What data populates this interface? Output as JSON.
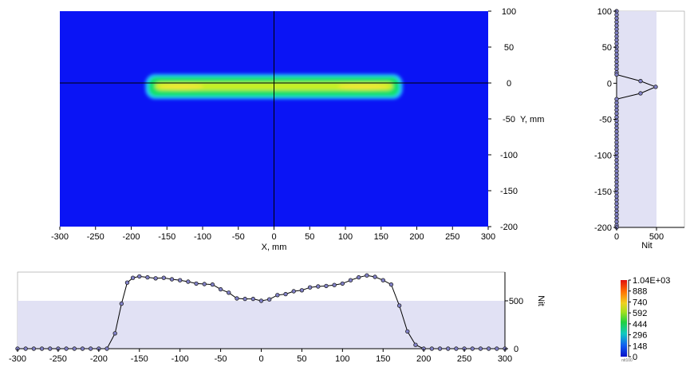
{
  "colors": {
    "field_blue": "#0a14f5",
    "band_outer": "#26c8ff",
    "band_mid": "#18e06a",
    "band_core": "#c8f024",
    "band_hot": "#f0e830",
    "profile_fill": "#e1e1f4",
    "marker_fill": "#8282c8",
    "line": "#000000"
  },
  "chart_data": [
    {
      "id": "heatmap",
      "type": "heatmap",
      "xlabel": "X, mm",
      "ylabel": "Y, mm",
      "xlim": [
        -300,
        300
      ],
      "ylim": [
        -200,
        100
      ],
      "xticks": [
        -300,
        -250,
        -200,
        -150,
        -100,
        -50,
        0,
        50,
        100,
        150,
        200,
        250,
        300
      ],
      "yticks": [
        100,
        50,
        0,
        -50,
        -100,
        -150,
        -200
      ],
      "bright_band": {
        "x": [
          -180,
          180
        ],
        "y": [
          -20,
          10
        ]
      }
    },
    {
      "id": "vertical-profile",
      "type": "line",
      "xlabel": "Nit",
      "xlim": [
        0,
        850
      ],
      "ylim": [
        -200,
        100
      ],
      "xticks": [
        0,
        500
      ],
      "yticks": [
        100,
        50,
        0,
        -50,
        -100,
        -150,
        -200
      ],
      "shaded_max": 500,
      "points": [
        [
          0,
          100
        ],
        [
          0,
          95
        ],
        [
          0,
          90
        ],
        [
          0,
          85
        ],
        [
          0,
          80
        ],
        [
          0,
          75
        ],
        [
          0,
          70
        ],
        [
          0,
          65
        ],
        [
          0,
          60
        ],
        [
          0,
          55
        ],
        [
          0,
          50
        ],
        [
          0,
          45
        ],
        [
          0,
          40
        ],
        [
          0,
          35
        ],
        [
          0,
          30
        ],
        [
          0,
          25
        ],
        [
          0,
          20
        ],
        [
          0,
          15
        ],
        [
          0,
          12
        ],
        [
          300,
          3
        ],
        [
          490,
          -5
        ],
        [
          300,
          -14
        ],
        [
          0,
          -22
        ],
        [
          0,
          -27
        ],
        [
          0,
          -32
        ],
        [
          0,
          -37
        ],
        [
          0,
          -42
        ],
        [
          0,
          -47
        ],
        [
          0,
          -52
        ],
        [
          0,
          -57
        ],
        [
          0,
          -62
        ],
        [
          0,
          -67
        ],
        [
          0,
          -72
        ],
        [
          0,
          -77
        ],
        [
          0,
          -82
        ],
        [
          0,
          -87
        ],
        [
          0,
          -92
        ],
        [
          0,
          -97
        ],
        [
          0,
          -102
        ],
        [
          0,
          -107
        ],
        [
          0,
          -112
        ],
        [
          0,
          -117
        ],
        [
          0,
          -122
        ],
        [
          0,
          -127
        ],
        [
          0,
          -132
        ],
        [
          0,
          -137
        ],
        [
          0,
          -142
        ],
        [
          0,
          -147
        ],
        [
          0,
          -152
        ],
        [
          0,
          -157
        ],
        [
          0,
          -162
        ],
        [
          0,
          -167
        ],
        [
          0,
          -172
        ],
        [
          0,
          -177
        ],
        [
          0,
          -182
        ],
        [
          0,
          -187
        ],
        [
          0,
          -192
        ],
        [
          0,
          -197
        ],
        [
          0,
          -200
        ]
      ]
    },
    {
      "id": "horizontal-profile",
      "type": "line",
      "ylabel": "Nit",
      "xlim": [
        -300,
        300
      ],
      "ylim": [
        0,
        800
      ],
      "xticks": [
        -300,
        -250,
        -200,
        -150,
        -100,
        -50,
        0,
        50,
        100,
        150,
        200,
        250,
        300
      ],
      "yticks": [
        0,
        500
      ],
      "shaded_max": 500,
      "points": [
        [
          -300,
          0
        ],
        [
          -290,
          0
        ],
        [
          -280,
          0
        ],
        [
          -270,
          0
        ],
        [
          -260,
          0
        ],
        [
          -250,
          0
        ],
        [
          -240,
          0
        ],
        [
          -230,
          0
        ],
        [
          -220,
          0
        ],
        [
          -210,
          0
        ],
        [
          -200,
          0
        ],
        [
          -190,
          0
        ],
        [
          -180,
          160
        ],
        [
          -172,
          470
        ],
        [
          -165,
          690
        ],
        [
          -158,
          740
        ],
        [
          -150,
          755
        ],
        [
          -140,
          745
        ],
        [
          -130,
          735
        ],
        [
          -120,
          740
        ],
        [
          -110,
          725
        ],
        [
          -100,
          715
        ],
        [
          -90,
          700
        ],
        [
          -80,
          680
        ],
        [
          -70,
          675
        ],
        [
          -60,
          670
        ],
        [
          -50,
          620
        ],
        [
          -40,
          585
        ],
        [
          -30,
          525
        ],
        [
          -20,
          520
        ],
        [
          -10,
          520
        ],
        [
          0,
          500
        ],
        [
          10,
          515
        ],
        [
          20,
          560
        ],
        [
          30,
          570
        ],
        [
          40,
          600
        ],
        [
          50,
          610
        ],
        [
          60,
          640
        ],
        [
          70,
          650
        ],
        [
          80,
          655
        ],
        [
          90,
          665
        ],
        [
          100,
          680
        ],
        [
          110,
          715
        ],
        [
          120,
          745
        ],
        [
          130,
          765
        ],
        [
          140,
          750
        ],
        [
          150,
          715
        ],
        [
          160,
          670
        ],
        [
          170,
          450
        ],
        [
          180,
          180
        ],
        [
          190,
          40
        ],
        [
          200,
          0
        ],
        [
          210,
          0
        ],
        [
          220,
          0
        ],
        [
          230,
          0
        ],
        [
          240,
          0
        ],
        [
          250,
          0
        ],
        [
          260,
          0
        ],
        [
          270,
          0
        ],
        [
          280,
          0
        ],
        [
          290,
          0
        ],
        [
          300,
          0
        ]
      ]
    },
    {
      "id": "colorbar",
      "type": "heatmap",
      "tick_labels": [
        "1.04E+03",
        "888",
        "740",
        "592",
        "444",
        "296",
        "148",
        "0"
      ],
      "tiny_label": "nit100"
    }
  ]
}
